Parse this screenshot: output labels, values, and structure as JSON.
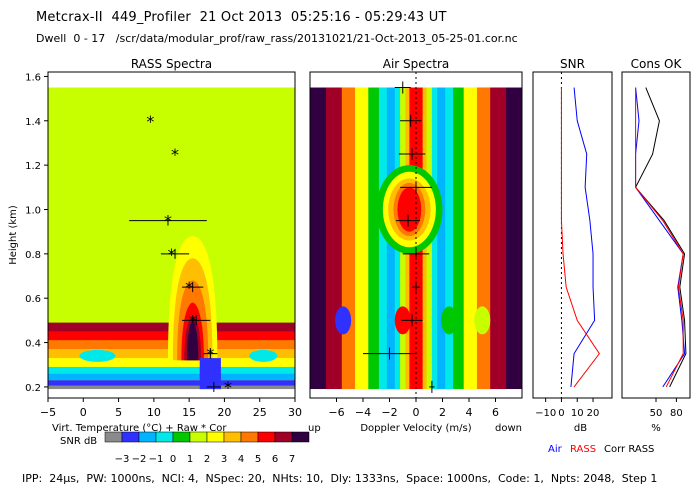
{
  "header": {
    "title": "Metcrax-II  449_Profiler  21 Oct 2013  05:25:16 - 05:29:43 UT",
    "dwell": "Dwell  0 - 17   /scr/data/modular_prof/raw_rass/20131021/21-Oct-2013_05-25-01.cor.nc"
  },
  "footer": {
    "params": "IPP:  24µs,  PW: 1000ns,  NCI: 4,  NSpec: 20,  NHts: 10,  Dly: 1333ns,  Space: 1000ns,  Code: 1,  Npts: 2048,  Step 1"
  },
  "colors": {
    "snr_scale": [
      "#8a8a8a",
      "#3030ff",
      "#00b4ff",
      "#00e8e8",
      "#00c800",
      "#c8ff00",
      "#ffff00",
      "#ffbe00",
      "#ff7800",
      "#ff0000",
      "#a00028",
      "#300040"
    ],
    "air_line": "#0000ff",
    "rass_line": "#ff0000",
    "corr_rass_line": "#000000"
  },
  "chart_data": [
    {
      "type": "scatter",
      "title": "RASS Spectra",
      "xlabel": "Virt. Temperature (°C)  + Raw  * Cor",
      "ylabel": "Height (km)",
      "xlim": [
        -5,
        30
      ],
      "ylim": [
        0.15,
        1.62
      ],
      "x_ticks": [
        -5,
        0,
        5,
        10,
        15,
        20,
        25,
        30
      ],
      "y_ticks": [
        0.2,
        0.4,
        0.6,
        0.8,
        1.0,
        1.2,
        1.4,
        1.6
      ],
      "cor_points": [
        {
          "height": 1.4,
          "temp": 9.5
        },
        {
          "height": 1.25,
          "temp": 13.0
        },
        {
          "height": 0.95,
          "temp": 12.0
        },
        {
          "height": 0.8,
          "temp": 12.5
        },
        {
          "height": 0.65,
          "temp": 15.0
        },
        {
          "height": 0.5,
          "temp": 15.5
        },
        {
          "height": 0.35,
          "temp": 18.0
        },
        {
          "height": 0.2,
          "temp": 20.5
        }
      ],
      "raw_points": [
        {
          "height": 0.95,
          "temp": 12.0,
          "err": 5.5
        },
        {
          "height": 0.8,
          "temp": 13.0,
          "err": 2.0
        },
        {
          "height": 0.65,
          "temp": 15.5,
          "err": 1.5
        },
        {
          "height": 0.5,
          "temp": 16.0,
          "err": 2.0
        },
        {
          "height": 0.35,
          "temp": 18.0,
          "err": 1.0
        },
        {
          "height": 0.2,
          "temp": 18.5,
          "err": 1.0
        }
      ]
    },
    {
      "type": "heatmap",
      "title": "Air Spectra",
      "xlabel": "Doppler Velocity (m/s)",
      "x_left_label": "up",
      "x_right_label": "down",
      "xlim": [
        -8,
        8
      ],
      "ylim": [
        0.15,
        1.62
      ],
      "x_ticks": [
        -6,
        -4,
        -2,
        0,
        2,
        4,
        6
      ],
      "peaks": [
        {
          "height": 1.55,
          "velocity": -1.0,
          "err": 0.6
        },
        {
          "height": 1.4,
          "velocity": -0.4,
          "err": 0.8
        },
        {
          "height": 1.25,
          "velocity": -0.3,
          "err": 1.0
        },
        {
          "height": 1.1,
          "velocity": 0.0,
          "err": 1.2
        },
        {
          "height": 0.95,
          "velocity": -0.6,
          "err": 0.9
        },
        {
          "height": 0.8,
          "velocity": 0.0,
          "err": 1.0
        },
        {
          "height": 0.65,
          "velocity": 0.0,
          "err": 0.3
        },
        {
          "height": 0.5,
          "velocity": -0.3,
          "err": 0.8
        },
        {
          "height": 0.35,
          "velocity": -2.0,
          "err": 2.0
        },
        {
          "height": 0.2,
          "velocity": 1.2,
          "err": 0.2
        }
      ]
    },
    {
      "type": "line",
      "title": "SNR",
      "xlabel": "dB",
      "xlim": [
        -18,
        32
      ],
      "x_ticks": [
        -10,
        0,
        10,
        20
      ],
      "x_tick_labels": [
        "−10",
        "0",
        "10",
        "20"
      ],
      "series": [
        {
          "name": "Air",
          "color": "#0000ff",
          "points": [
            [
              1.55,
              8
            ],
            [
              1.4,
              10
            ],
            [
              1.25,
              16
            ],
            [
              1.1,
              15
            ],
            [
              0.95,
              18
            ],
            [
              0.8,
              20
            ],
            [
              0.65,
              20
            ],
            [
              0.5,
              21
            ],
            [
              0.35,
              8
            ],
            [
              0.2,
              6
            ]
          ]
        },
        {
          "name": "RASS",
          "color": "#ff0000",
          "points": [
            [
              1.55,
              0
            ],
            [
              1.4,
              0
            ],
            [
              1.25,
              0
            ],
            [
              1.1,
              0
            ],
            [
              0.95,
              0
            ],
            [
              0.8,
              1
            ],
            [
              0.65,
              3
            ],
            [
              0.5,
              10
            ],
            [
              0.35,
              24
            ],
            [
              0.2,
              8
            ]
          ]
        }
      ]
    },
    {
      "type": "line",
      "title": "Cons OK",
      "xlabel": "%",
      "xlim": [
        0,
        100
      ],
      "x_ticks": [
        50,
        80
      ],
      "series": [
        {
          "name": "Corr RASS",
          "color": "#000000",
          "points": [
            [
              1.55,
              35
            ],
            [
              1.4,
              55
            ],
            [
              1.25,
              45
            ],
            [
              1.1,
              20
            ],
            [
              0.95,
              62
            ],
            [
              0.8,
              92
            ],
            [
              0.65,
              85
            ],
            [
              0.5,
              92
            ],
            [
              0.35,
              94
            ],
            [
              0.2,
              70
            ]
          ]
        },
        {
          "name": "Air",
          "color": "#0000ff",
          "points": [
            [
              1.55,
              20
            ],
            [
              1.4,
              25
            ],
            [
              1.25,
              20
            ],
            [
              1.1,
              20
            ],
            [
              0.95,
              55
            ],
            [
              0.8,
              90
            ],
            [
              0.65,
              82
            ],
            [
              0.5,
              88
            ],
            [
              0.35,
              92
            ],
            [
              0.2,
              60
            ]
          ]
        },
        {
          "name": "RASS",
          "color": "#ff0000",
          "points": [
            [
              1.55,
              20
            ],
            [
              1.4,
              20
            ],
            [
              1.25,
              20
            ],
            [
              1.1,
              20
            ],
            [
              0.95,
              60
            ],
            [
              0.8,
              90
            ],
            [
              0.65,
              83
            ],
            [
              0.5,
              90
            ],
            [
              0.35,
              90
            ],
            [
              0.2,
              65
            ]
          ]
        }
      ]
    }
  ],
  "colorbar": {
    "label": "SNR dB",
    "ticks": [
      "−3",
      "−2",
      "−1",
      "0",
      "1",
      "2",
      "3",
      "4",
      "5",
      "6",
      "7"
    ]
  },
  "legend": [
    {
      "label": "Air",
      "color": "#0000ff"
    },
    {
      "label": "RASS",
      "color": "#ff0000"
    },
    {
      "label": "Corr RASS",
      "color": "#000000"
    }
  ]
}
